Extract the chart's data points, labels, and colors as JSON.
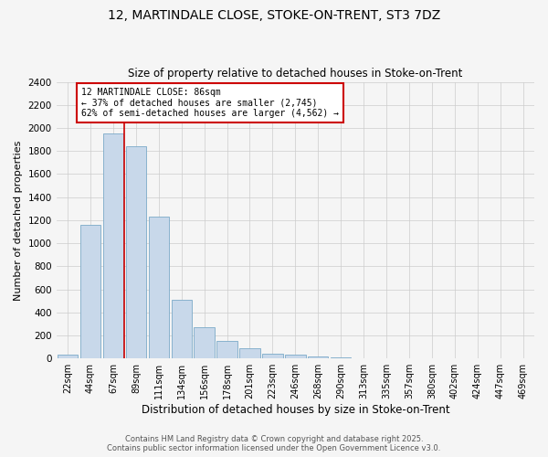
{
  "title_line1": "12, MARTINDALE CLOSE, STOKE-ON-TRENT, ST3 7DZ",
  "title_line2": "Size of property relative to detached houses in Stoke-on-Trent",
  "xlabel": "Distribution of detached houses by size in Stoke-on-Trent",
  "ylabel": "Number of detached properties",
  "bar_color": "#c8d8ea",
  "bar_edge_color": "#7baac8",
  "categories": [
    "22sqm",
    "44sqm",
    "67sqm",
    "89sqm",
    "111sqm",
    "134sqm",
    "156sqm",
    "178sqm",
    "201sqm",
    "223sqm",
    "246sqm",
    "268sqm",
    "290sqm",
    "313sqm",
    "335sqm",
    "357sqm",
    "380sqm",
    "402sqm",
    "424sqm",
    "447sqm",
    "469sqm"
  ],
  "values": [
    30,
    1160,
    1950,
    1840,
    1230,
    510,
    270,
    155,
    85,
    45,
    30,
    20,
    10,
    5,
    3,
    2,
    1,
    1,
    1,
    0,
    0
  ],
  "ylim": [
    0,
    2400
  ],
  "yticks": [
    0,
    200,
    400,
    600,
    800,
    1000,
    1200,
    1400,
    1600,
    1800,
    2000,
    2200,
    2400
  ],
  "property_line_x": 2.5,
  "annotation_text": "12 MARTINDALE CLOSE: 86sqm\n← 37% of detached houses are smaller (2,745)\n62% of semi-detached houses are larger (4,562) →",
  "vline_color": "#cc0000",
  "annotation_box_edge_color": "#cc0000",
  "footer_line1": "Contains HM Land Registry data © Crown copyright and database right 2025.",
  "footer_line2": "Contains public sector information licensed under the Open Government Licence v3.0.",
  "background_color": "#f5f5f5",
  "grid_color": "#cccccc"
}
